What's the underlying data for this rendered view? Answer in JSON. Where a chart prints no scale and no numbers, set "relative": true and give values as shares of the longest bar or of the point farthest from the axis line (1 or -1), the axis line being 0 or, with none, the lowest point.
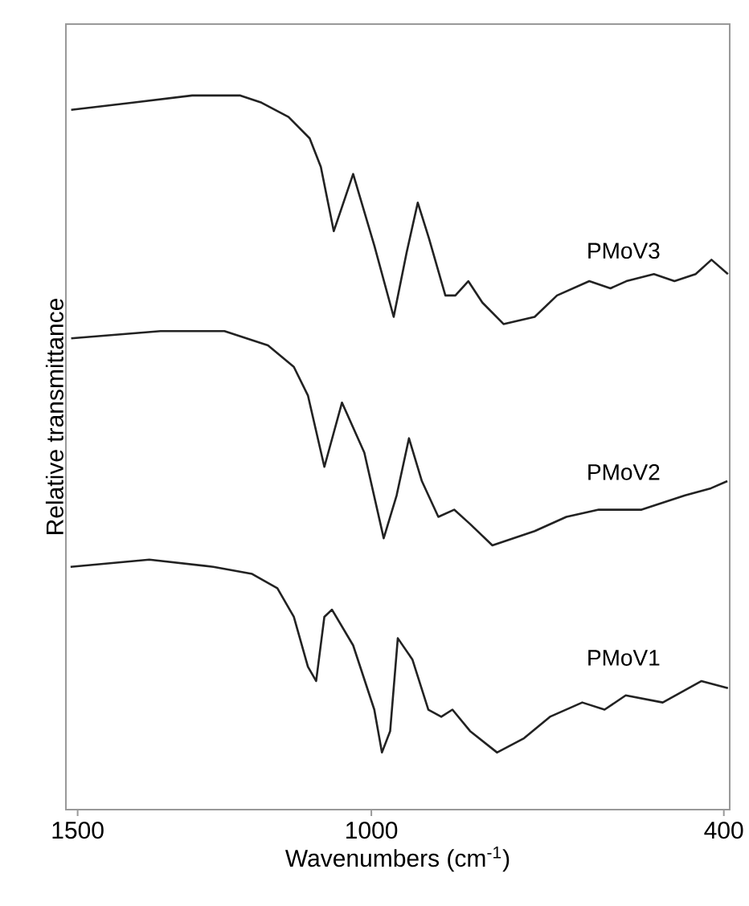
{
  "chart_data": {
    "type": "line",
    "relative": true,
    "xlabel": "Wavenumbers (cm$^{-1}$)",
    "ylabel": "Relative transmittance",
    "xlim": [
      1520,
      390
    ],
    "xticks": [
      1500,
      1000,
      400
    ],
    "grid": false,
    "legend": false,
    "marker": "none",
    "line_style": "solid",
    "series": [
      {
        "name": "PMoV3",
        "color": "#222222",
        "x": [
          1511,
          1406,
          1305,
          1223,
          1187,
          1141,
          1105,
          1086,
          1064,
          1031,
          995,
          962,
          940,
          921,
          902,
          874,
          857,
          835,
          811,
          775,
          722,
          684,
          629,
          593,
          566,
          519,
          484,
          448,
          421,
          393
        ],
        "values": [
          0.98,
          0.99,
          1.0,
          1.0,
          0.99,
          0.97,
          0.94,
          0.9,
          0.81,
          0.89,
          0.79,
          0.69,
          0.78,
          0.85,
          0.8,
          0.72,
          0.72,
          0.74,
          0.71,
          0.68,
          0.69,
          0.72,
          0.74,
          0.73,
          0.74,
          0.75,
          0.74,
          0.75,
          0.77,
          0.75
        ]
      },
      {
        "name": "PMoV2",
        "color": "#222222",
        "x": [
          1511,
          1359,
          1250,
          1176,
          1132,
          1108,
          1080,
          1050,
          1012,
          979,
          957,
          936,
          914,
          886,
          859,
          832,
          794,
          722,
          668,
          613,
          540,
          466,
          422,
          394
        ],
        "values": [
          0.66,
          0.67,
          0.67,
          0.65,
          0.62,
          0.58,
          0.48,
          0.57,
          0.5,
          0.38,
          0.44,
          0.52,
          0.46,
          0.41,
          0.42,
          0.4,
          0.37,
          0.39,
          0.41,
          0.42,
          0.42,
          0.44,
          0.45,
          0.46
        ]
      },
      {
        "name": "PMoV1",
        "color": "#222222",
        "x": [
          1512,
          1378,
          1269,
          1203,
          1160,
          1132,
          1108,
          1094,
          1080,
          1067,
          1031,
          995,
          982,
          968,
          955,
          930,
          903,
          881,
          862,
          832,
          786,
          740,
          696,
          641,
          603,
          567,
          504,
          438,
          393
        ],
        "values": [
          0.34,
          0.35,
          0.34,
          0.33,
          0.31,
          0.27,
          0.2,
          0.18,
          0.27,
          0.28,
          0.23,
          0.14,
          0.08,
          0.11,
          0.24,
          0.21,
          0.14,
          0.13,
          0.14,
          0.11,
          0.08,
          0.1,
          0.13,
          0.15,
          0.14,
          0.16,
          0.15,
          0.18,
          0.17
        ]
      }
    ]
  }
}
